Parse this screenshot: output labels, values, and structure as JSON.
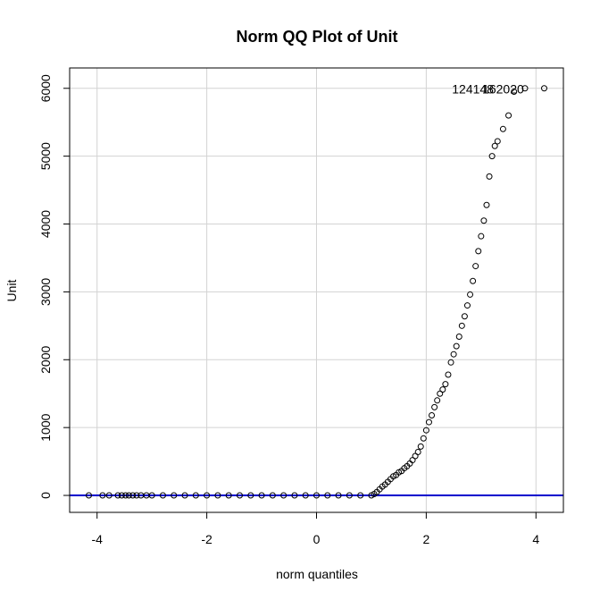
{
  "chart_data": {
    "type": "scatter",
    "title": "Norm QQ Plot of Unit",
    "xlabel": "norm quantiles",
    "ylabel": "Unit",
    "xlim": [
      -4.5,
      4.5
    ],
    "ylim": [
      -250,
      6300
    ],
    "x_ticks": [
      -4,
      -2,
      0,
      2,
      4
    ],
    "y_ticks": [
      0,
      1000,
      2000,
      3000,
      4000,
      5000,
      6000
    ],
    "x_tick_labels": [
      "-4",
      "-2",
      "0",
      "2",
      "4"
    ],
    "y_tick_labels": [
      "0",
      "1000",
      "2000",
      "3000",
      "4000",
      "5000",
      "6000"
    ],
    "grid": true,
    "point_color": "#000000",
    "line_color": "#0000cd",
    "reference_line": {
      "slope": 0,
      "intercept": 0
    },
    "outlier_labels": [
      {
        "text": "124148",
        "x": 2.85,
        "y": 5990
      },
      {
        "text": "162020",
        "x": 3.4,
        "y": 5990
      }
    ],
    "series": [
      {
        "points": [
          [
            -4.15,
            0
          ],
          [
            -3.9,
            0
          ],
          [
            -3.78,
            0
          ],
          [
            -3.62,
            0
          ],
          [
            -3.55,
            0
          ],
          [
            -3.48,
            0
          ],
          [
            -3.42,
            0
          ],
          [
            -3.35,
            0
          ],
          [
            -3.28,
            0
          ],
          [
            -3.2,
            0
          ],
          [
            -3.1,
            0
          ],
          [
            -3.0,
            0
          ],
          [
            -2.8,
            0
          ],
          [
            -2.6,
            0
          ],
          [
            -2.4,
            0
          ],
          [
            -2.2,
            0
          ],
          [
            -2.0,
            0
          ],
          [
            -1.8,
            0
          ],
          [
            -1.6,
            0
          ],
          [
            -1.4,
            0
          ],
          [
            -1.2,
            0
          ],
          [
            -1.0,
            0
          ],
          [
            -0.8,
            0
          ],
          [
            -0.6,
            0
          ],
          [
            -0.4,
            0
          ],
          [
            -0.2,
            0
          ],
          [
            0.0,
            0
          ],
          [
            0.2,
            0
          ],
          [
            0.4,
            0
          ],
          [
            0.6,
            0
          ],
          [
            0.8,
            0
          ],
          [
            1.0,
            0
          ],
          [
            1.05,
            20
          ],
          [
            1.1,
            50
          ],
          [
            1.15,
            90
          ],
          [
            1.2,
            130
          ],
          [
            1.25,
            160
          ],
          [
            1.3,
            200
          ],
          [
            1.35,
            240
          ],
          [
            1.4,
            280
          ],
          [
            1.45,
            300
          ],
          [
            1.5,
            340
          ],
          [
            1.55,
            360
          ],
          [
            1.6,
            400
          ],
          [
            1.65,
            430
          ],
          [
            1.7,
            470
          ],
          [
            1.75,
            520
          ],
          [
            1.8,
            580
          ],
          [
            1.85,
            640
          ],
          [
            1.9,
            720
          ],
          [
            1.95,
            840
          ],
          [
            2.0,
            960
          ],
          [
            2.05,
            1080
          ],
          [
            2.1,
            1180
          ],
          [
            2.15,
            1300
          ],
          [
            2.2,
            1400
          ],
          [
            2.25,
            1500
          ],
          [
            2.3,
            1560
          ],
          [
            2.35,
            1640
          ],
          [
            2.4,
            1780
          ],
          [
            2.45,
            1960
          ],
          [
            2.5,
            2080
          ],
          [
            2.55,
            2200
          ],
          [
            2.6,
            2340
          ],
          [
            2.65,
            2500
          ],
          [
            2.7,
            2640
          ],
          [
            2.75,
            2800
          ],
          [
            2.8,
            2960
          ],
          [
            2.85,
            3160
          ],
          [
            2.9,
            3380
          ],
          [
            2.95,
            3600
          ],
          [
            3.0,
            3820
          ],
          [
            3.05,
            4050
          ],
          [
            3.1,
            4280
          ],
          [
            3.15,
            4700
          ],
          [
            3.2,
            5000
          ],
          [
            3.25,
            5150
          ],
          [
            3.3,
            5220
          ],
          [
            3.4,
            5400
          ],
          [
            3.5,
            5600
          ],
          [
            3.6,
            5950
          ],
          [
            3.8,
            6000
          ],
          [
            4.15,
            6000
          ]
        ]
      }
    ]
  }
}
